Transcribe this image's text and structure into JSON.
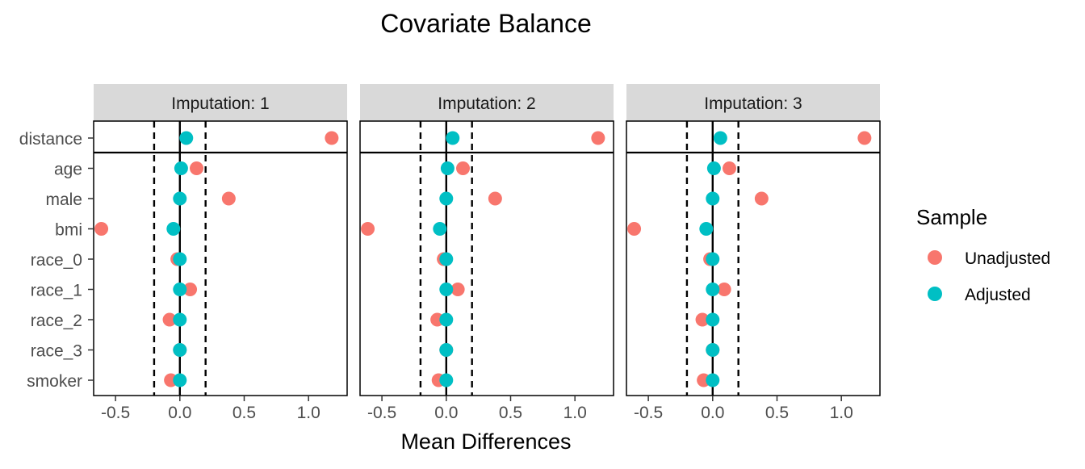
{
  "chart_data": {
    "type": "scatter",
    "title": "Covariate Balance",
    "xlabel": "Mean Differences",
    "ylabel": "",
    "xlim": [
      -0.67,
      1.3
    ],
    "x_ticks": [
      -0.5,
      0.0,
      0.5,
      1.0
    ],
    "x_tick_labels": [
      "-0.5",
      "0.0",
      "0.5",
      "1.0"
    ],
    "threshold_lines": [
      -0.2,
      0.2
    ],
    "reference_line": 0,
    "covariates": [
      "distance",
      "age",
      "male",
      "bmi",
      "race_0",
      "race_1",
      "race_2",
      "race_3",
      "smoker"
    ],
    "separator_after": "distance",
    "legend": {
      "title": "Sample",
      "position": "right",
      "entries": [
        {
          "name": "Unadjusted",
          "color": "#F8766D"
        },
        {
          "name": "Adjusted",
          "color": "#00BFC4"
        }
      ]
    },
    "grid": false,
    "panels": [
      {
        "title": "Imputation: 1",
        "series": [
          {
            "name": "Unadjusted",
            "color": "#F8766D",
            "values": [
              1.18,
              0.13,
              0.38,
              -0.61,
              -0.02,
              0.08,
              -0.08,
              0.0,
              -0.07
            ]
          },
          {
            "name": "Adjusted",
            "color": "#00BFC4",
            "values": [
              0.05,
              0.01,
              0.0,
              -0.05,
              0.0,
              0.0,
              0.0,
              0.0,
              0.0
            ]
          }
        ]
      },
      {
        "title": "Imputation: 2",
        "series": [
          {
            "name": "Unadjusted",
            "color": "#F8766D",
            "values": [
              1.18,
              0.13,
              0.38,
              -0.61,
              -0.02,
              0.09,
              -0.07,
              0.0,
              -0.06
            ]
          },
          {
            "name": "Adjusted",
            "color": "#00BFC4",
            "values": [
              0.05,
              0.01,
              0.0,
              -0.05,
              0.0,
              0.0,
              0.0,
              0.0,
              0.0
            ]
          }
        ]
      },
      {
        "title": "Imputation: 3",
        "series": [
          {
            "name": "Unadjusted",
            "color": "#F8766D",
            "values": [
              1.18,
              0.13,
              0.38,
              -0.61,
              -0.02,
              0.09,
              -0.08,
              0.0,
              -0.07
            ]
          },
          {
            "name": "Adjusted",
            "color": "#00BFC4",
            "values": [
              0.06,
              0.01,
              0.0,
              -0.05,
              0.0,
              0.0,
              0.0,
              0.0,
              0.0
            ]
          }
        ]
      }
    ]
  }
}
